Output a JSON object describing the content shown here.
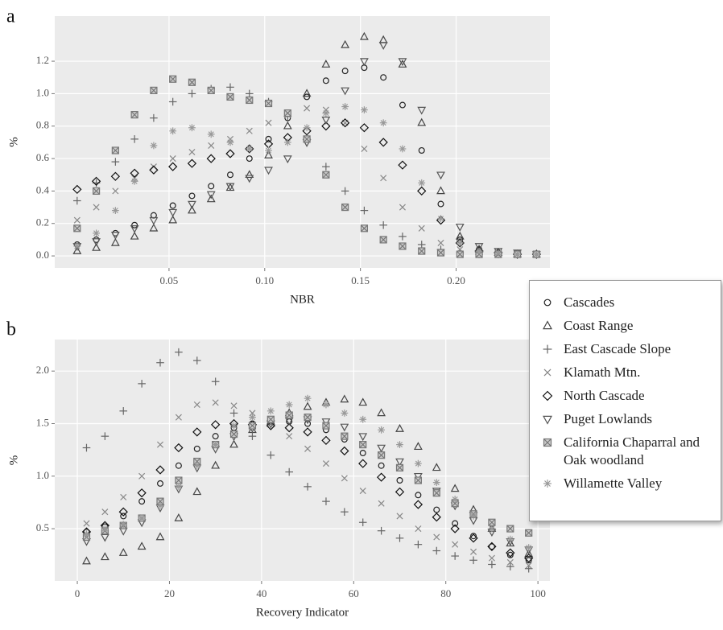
{
  "chart_data": [
    {
      "type": "scatter",
      "panel_label": "a",
      "xlabel": "NBR",
      "ylabel": "%",
      "grid": true,
      "xlim": [
        -0.0097,
        0.249
      ],
      "ylim": [
        -0.074,
        1.478
      ],
      "xticks": [
        0.05,
        {
          "value": 0.1,
          "label": "0.10"
        },
        0.15,
        {
          "value": 0.2,
          "label": "0.20"
        }
      ],
      "yticks": [
        {
          "value": 0,
          "label": "0.0"
        },
        0.2,
        0.4,
        0.6,
        0.8,
        {
          "value": 1,
          "label": "1.0"
        },
        1.2
      ],
      "x": [
        0.002,
        0.012,
        0.022,
        0.032,
        0.042,
        0.052,
        0.062,
        0.072,
        0.082,
        0.092,
        0.102,
        0.112,
        0.122,
        0.132,
        0.142,
        0.152,
        0.162,
        0.172,
        0.182,
        0.192,
        0.202,
        0.212,
        0.222,
        0.232,
        0.242
      ],
      "series": [
        {
          "name": "Cascades",
          "marker": "circle",
          "color": "#222222",
          "values": [
            0.07,
            0.1,
            0.14,
            0.19,
            0.25,
            0.31,
            0.37,
            0.43,
            0.5,
            0.6,
            0.72,
            0.85,
            0.98,
            1.08,
            1.14,
            1.16,
            1.1,
            0.93,
            0.65,
            0.32,
            0.1,
            0.04,
            0.02,
            0.01,
            0.01
          ]
        },
        {
          "name": "Coast Range",
          "marker": "triangle-up",
          "color": "#444444",
          "values": [
            0.03,
            0.05,
            0.08,
            0.12,
            0.17,
            0.22,
            0.28,
            0.35,
            0.42,
            0.5,
            0.62,
            0.8,
            1.0,
            1.18,
            1.3,
            1.35,
            1.33,
            1.18,
            0.82,
            0.4,
            0.12,
            0.04,
            0.02,
            0.01,
            0.01
          ]
        },
        {
          "name": "East Cascade Slope",
          "marker": "plus",
          "color": "#666666",
          "values": [
            0.34,
            0.45,
            0.58,
            0.72,
            0.85,
            0.95,
            1.0,
            1.03,
            1.04,
            1.0,
            0.95,
            0.86,
            0.72,
            0.55,
            0.4,
            0.28,
            0.19,
            0.12,
            0.07,
            0.04,
            0.02,
            0.01,
            0.01,
            0.01,
            0.01
          ]
        },
        {
          "name": "Klamath Mtn.",
          "marker": "cross",
          "color": "#888888",
          "values": [
            0.22,
            0.3,
            0.4,
            0.48,
            0.55,
            0.6,
            0.64,
            0.68,
            0.72,
            0.77,
            0.82,
            0.87,
            0.91,
            0.9,
            0.82,
            0.66,
            0.48,
            0.3,
            0.17,
            0.08,
            0.04,
            0.02,
            0.01,
            0.01,
            0.01
          ]
        },
        {
          "name": "North Cascade",
          "marker": "diamond",
          "color": "#111111",
          "values": [
            0.41,
            0.46,
            0.49,
            0.51,
            0.53,
            0.55,
            0.57,
            0.6,
            0.63,
            0.66,
            0.69,
            0.73,
            0.77,
            0.8,
            0.82,
            0.79,
            0.7,
            0.56,
            0.4,
            0.22,
            0.08,
            0.03,
            0.02,
            0.01,
            0.01
          ]
        },
        {
          "name": "Puget Lowlands",
          "marker": "triangle-down",
          "color": "#555555",
          "values": [
            0.06,
            0.09,
            0.13,
            0.17,
            0.22,
            0.27,
            0.32,
            0.38,
            0.43,
            0.48,
            0.53,
            0.6,
            0.7,
            0.84,
            1.02,
            1.2,
            1.3,
            1.2,
            0.9,
            0.5,
            0.18,
            0.06,
            0.03,
            0.02,
            0.01
          ]
        },
        {
          "name": "California Chaparral and Oak woodland",
          "marker": "boxed-cross",
          "color": "#777777",
          "values": [
            0.17,
            0.4,
            0.65,
            0.87,
            1.02,
            1.09,
            1.07,
            1.02,
            0.98,
            0.96,
            0.94,
            0.88,
            0.72,
            0.5,
            0.3,
            0.17,
            0.1,
            0.06,
            0.03,
            0.02,
            0.01,
            0.01,
            0.01,
            0.01,
            0.01
          ]
        },
        {
          "name": "Willamette Valley",
          "marker": "star",
          "color": "#999999",
          "values": [
            0.06,
            0.14,
            0.28,
            0.46,
            0.68,
            0.77,
            0.79,
            0.75,
            0.7,
            0.66,
            0.65,
            0.7,
            0.79,
            0.88,
            0.92,
            0.9,
            0.82,
            0.66,
            0.45,
            0.23,
            0.08,
            0.03,
            0.02,
            0.01,
            0.01
          ]
        }
      ]
    },
    {
      "type": "scatter",
      "panel_label": "b",
      "xlabel": "Recovery Indicator",
      "ylabel": "%",
      "grid": true,
      "xlim": [
        -4.9,
        102.6
      ],
      "ylim": [
        0.003,
        2.3
      ],
      "xticks": [
        0,
        20,
        40,
        60,
        80,
        100
      ],
      "yticks": [
        0.5,
        {
          "value": 1,
          "label": "1.0"
        },
        1.5,
        {
          "value": 2,
          "label": "2.0"
        }
      ],
      "x": [
        2,
        6,
        10,
        14,
        18,
        22,
        26,
        30,
        34,
        38,
        42,
        46,
        50,
        54,
        58,
        62,
        66,
        70,
        74,
        78,
        82,
        86,
        90,
        94,
        98
      ],
      "series": [
        {
          "marker": "circle",
          "color": "#222222",
          "values": [
            0.47,
            0.52,
            0.62,
            0.76,
            0.93,
            1.1,
            1.26,
            1.38,
            1.46,
            1.5,
            1.52,
            1.52,
            1.5,
            1.44,
            1.35,
            1.22,
            1.1,
            0.96,
            0.82,
            0.68,
            0.55,
            0.43,
            0.33,
            0.25,
            0.2
          ]
        },
        {
          "marker": "triangle-up",
          "color": "#444444",
          "values": [
            0.19,
            0.23,
            0.27,
            0.33,
            0.42,
            0.6,
            0.85,
            1.1,
            1.3,
            1.44,
            1.52,
            1.6,
            1.66,
            1.7,
            1.73,
            1.7,
            1.6,
            1.45,
            1.28,
            1.08,
            0.88,
            0.68,
            0.5,
            0.36,
            0.26
          ]
        },
        {
          "marker": "plus",
          "color": "#666666",
          "values": [
            1.27,
            1.38,
            1.62,
            1.88,
            2.08,
            2.18,
            2.1,
            1.9,
            1.6,
            1.38,
            1.2,
            1.04,
            0.9,
            0.76,
            0.66,
            0.56,
            0.48,
            0.41,
            0.35,
            0.29,
            0.24,
            0.2,
            0.16,
            0.14,
            0.12
          ]
        },
        {
          "marker": "cross",
          "color": "#888888",
          "values": [
            0.55,
            0.66,
            0.8,
            1.0,
            1.3,
            1.56,
            1.68,
            1.7,
            1.67,
            1.6,
            1.5,
            1.38,
            1.26,
            1.12,
            0.98,
            0.86,
            0.74,
            0.62,
            0.5,
            0.42,
            0.35,
            0.28,
            0.22,
            0.18,
            0.15
          ]
        },
        {
          "marker": "diamond",
          "color": "#111111",
          "values": [
            0.47,
            0.53,
            0.66,
            0.84,
            1.06,
            1.27,
            1.42,
            1.49,
            1.5,
            1.49,
            1.48,
            1.46,
            1.42,
            1.34,
            1.24,
            1.12,
            0.99,
            0.85,
            0.73,
            0.61,
            0.5,
            0.41,
            0.33,
            0.27,
            0.22
          ]
        },
        {
          "marker": "triangle-down",
          "color": "#555555",
          "values": [
            0.38,
            0.42,
            0.48,
            0.56,
            0.7,
            0.88,
            1.08,
            1.26,
            1.38,
            1.46,
            1.5,
            1.53,
            1.54,
            1.52,
            1.47,
            1.38,
            1.27,
            1.14,
            1.0,
            0.86,
            0.72,
            0.58,
            0.47,
            0.38,
            0.3
          ]
        },
        {
          "marker": "boxed-cross",
          "color": "#777777",
          "values": [
            0.42,
            0.48,
            0.53,
            0.6,
            0.76,
            0.96,
            1.14,
            1.3,
            1.4,
            1.48,
            1.54,
            1.58,
            1.56,
            1.48,
            1.38,
            1.3,
            1.2,
            1.08,
            0.96,
            0.84,
            0.74,
            0.64,
            0.56,
            0.5,
            0.46
          ]
        },
        {
          "marker": "star",
          "color": "#999999",
          "values": [
            0.45,
            0.5,
            0.54,
            0.6,
            0.72,
            0.9,
            1.1,
            1.3,
            1.48,
            1.56,
            1.62,
            1.68,
            1.74,
            1.68,
            1.6,
            1.54,
            1.44,
            1.3,
            1.12,
            0.94,
            0.78,
            0.62,
            0.5,
            0.4,
            0.32
          ]
        }
      ]
    }
  ]
}
